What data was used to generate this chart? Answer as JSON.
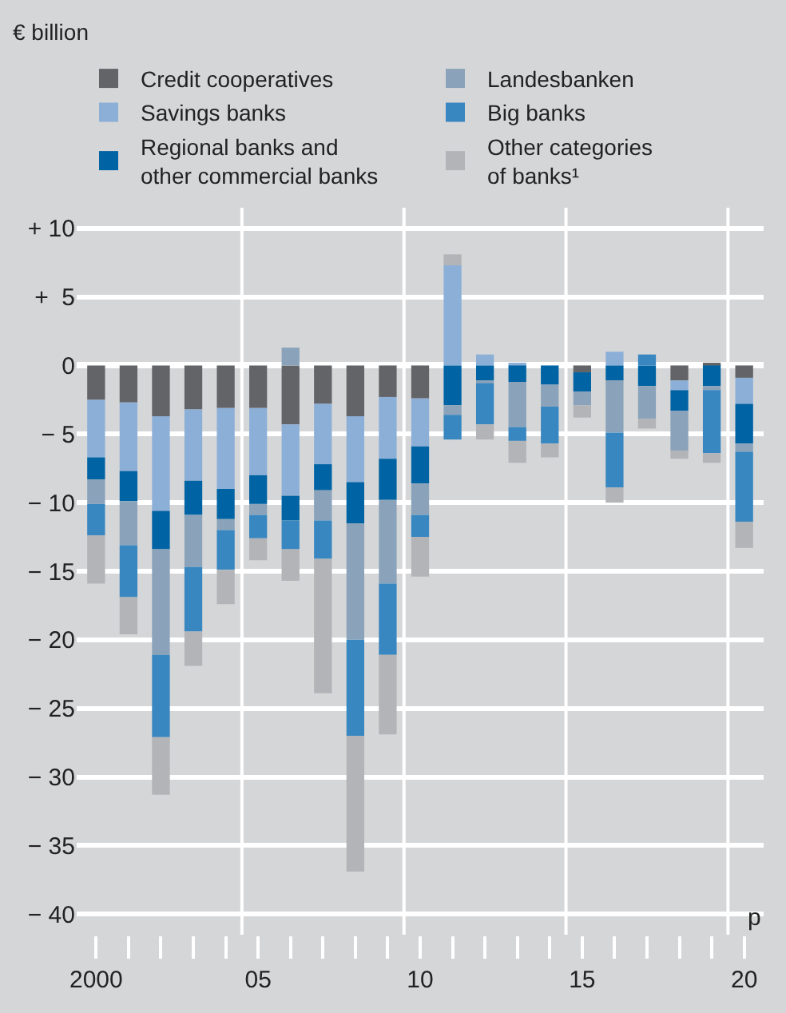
{
  "chart_data": {
    "type": "bar",
    "stacked": true,
    "categories": [
      "2000",
      null,
      null,
      null,
      null,
      "05",
      null,
      null,
      null,
      null,
      "10",
      null,
      null,
      null,
      null,
      "15",
      null,
      null,
      null,
      null,
      "20"
    ],
    "series": [
      {
        "name": "Credit cooperatives",
        "color": "#636467",
        "values": [
          -2.5,
          -2.7,
          -3.7,
          -3.2,
          -3.1,
          -3.1,
          -4.3,
          -2.8,
          -3.7,
          -2.3,
          -2.4,
          null,
          null,
          null,
          null,
          -0.5,
          null,
          null,
          -1.1,
          0.2,
          -0.9
        ]
      },
      {
        "name": "Savings banks",
        "color": "#8cafd8",
        "values": [
          -4.2,
          -5.0,
          -6.9,
          -5.2,
          -5.9,
          -4.9,
          -5.2,
          -4.4,
          -4.8,
          -4.5,
          -3.5,
          7.3,
          0.8,
          0.2,
          null,
          null,
          1.0,
          null,
          -0.7,
          null,
          -1.9
        ]
      },
      {
        "name": "Regional banks and\nother commercial banks",
        "color": "#0063a3",
        "values": [
          -1.6,
          -2.2,
          -2.8,
          -2.5,
          -2.2,
          -2.1,
          -1.8,
          -1.9,
          -3.0,
          -3.0,
          -2.7,
          -2.9,
          -1.1,
          -1.2,
          -1.4,
          -1.4,
          -1.1,
          -1.5,
          -1.5,
          -1.5,
          -2.9
        ]
      },
      {
        "name": "Landesbanken",
        "color": "#8aa3ba",
        "values": [
          -1.8,
          -3.2,
          -7.7,
          -3.8,
          -0.8,
          -0.8,
          1.3,
          -2.2,
          -8.5,
          -6.1,
          -2.3,
          -0.7,
          -0.2,
          -3.3,
          -1.6,
          -1.0,
          -3.8,
          -2.4,
          -2.9,
          -0.3,
          -0.6
        ]
      },
      {
        "name": "Big banks",
        "color": "#3887c0",
        "values": [
          -2.3,
          -3.8,
          -6.0,
          -4.7,
          -2.9,
          -1.7,
          -2.1,
          -2.8,
          -7.0,
          -5.2,
          -1.6,
          -1.8,
          -3.0,
          -1.0,
          -2.7,
          null,
          -4.0,
          0.8,
          null,
          -4.6,
          -5.1
        ]
      },
      {
        "name": "Other categories\nof banks¹",
        "color": "#b3b4b7",
        "values": [
          -3.5,
          -2.7,
          -4.2,
          -2.5,
          -2.5,
          -1.6,
          -2.3,
          -9.8,
          -9.9,
          -5.8,
          -2.9,
          0.8,
          -1.1,
          -1.6,
          -1.0,
          -0.9,
          -1.1,
          -0.7,
          -0.6,
          -0.7,
          -1.9
        ]
      }
    ],
    "ylim": [
      -41.5,
      11.5
    ],
    "yticks": [
      {
        "value": 10,
        "label": "+ 10"
      },
      {
        "value": 5,
        "label": "+  5"
      },
      0,
      {
        "value": -5,
        "label": "− 5"
      },
      {
        "value": -10,
        "label": "− 10"
      },
      {
        "value": -15,
        "label": "− 15"
      },
      {
        "value": -20,
        "label": "− 20"
      },
      {
        "value": -25,
        "label": "− 25"
      },
      {
        "value": -30,
        "label": "− 30"
      },
      {
        "value": -35,
        "label": "− 35"
      },
      {
        "value": -40,
        "label": "− 40"
      }
    ],
    "grid": true,
    "legend": "top",
    "annotations": [
      "€ billion",
      "p"
    ]
  }
}
